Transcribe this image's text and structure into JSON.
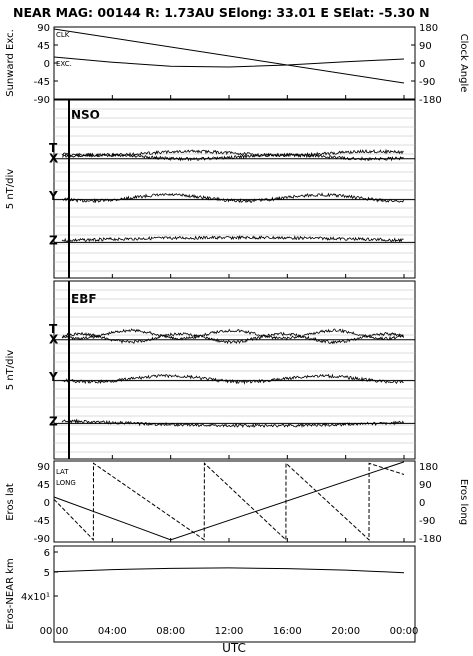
{
  "header": {
    "title": "NEAR MAG: 00144  R: 1.73AU  SElong:   33.01 E  SElat:   -5.30 N"
  },
  "colors": {
    "ink": "#000000",
    "grid": "#b0b0b0",
    "background": "#ffffff"
  },
  "chart_data": [
    {
      "type": "line",
      "id": "panel1",
      "ylabel_left": "Sunward Exc.",
      "ylabel_right": "Clock Angle",
      "left_ticks": [
        "90",
        "45",
        "0",
        "-45",
        "-90"
      ],
      "right_ticks": [
        "180",
        "90",
        "0",
        "-90",
        "-180"
      ],
      "ylim_left": [
        -90,
        90
      ],
      "ylim_right": [
        -180,
        180
      ],
      "legend": [
        "CLK",
        "EXC."
      ],
      "series": [
        {
          "name": "CLK",
          "x_hours": [
            0,
            24
          ],
          "values_right": [
            170,
            -100
          ]
        },
        {
          "name": "EXC.",
          "x_hours": [
            0,
            4,
            8,
            12,
            16,
            20,
            24
          ],
          "values_left": [
            15,
            2,
            -8,
            -10,
            -5,
            3,
            10
          ]
        }
      ]
    },
    {
      "type": "line",
      "id": "panel2",
      "frame": "NSO",
      "ylabel": "5 nT/div",
      "components": [
        "T",
        "X",
        "Y",
        "Z"
      ],
      "grid": true
    },
    {
      "type": "line",
      "id": "panel3",
      "frame": "EBF",
      "ylabel": "5 nT/div",
      "components": [
        "T",
        "X",
        "Y",
        "Z"
      ],
      "grid": true
    },
    {
      "type": "line",
      "id": "panel4",
      "ylabel_left": "Eros lat",
      "ylabel_right": "Eros long",
      "left_ticks": [
        "90",
        "45",
        "0",
        "-45",
        "-90"
      ],
      "right_ticks": [
        "180",
        "90",
        "0",
        "-90",
        "-180"
      ],
      "ylim_left": [
        -90,
        90
      ],
      "ylim_right": [
        -180,
        180
      ],
      "legend": [
        "LAT",
        "LONG"
      ],
      "series": [
        {
          "name": "LAT",
          "x_hours": [
            0,
            8,
            24
          ],
          "values_left": [
            10,
            -85,
            88
          ]
        },
        {
          "name": "LONG",
          "x_hours": [
            0,
            2.7,
            2.71,
            10.3,
            10.31,
            15.9,
            15.91,
            21.6,
            21.61,
            24
          ],
          "values_right": [
            10,
            -170,
            170,
            -170,
            170,
            -170,
            170,
            -170,
            170,
            120
          ]
        }
      ]
    },
    {
      "type": "line",
      "id": "panel5",
      "ylabel": "Eros-NEAR km",
      "ticks": [
        "6",
        "5",
        "4x10¹"
      ],
      "scale": "log",
      "ylim": [
        35,
        65
      ],
      "series": [
        {
          "name": "distance",
          "x_hours": [
            0,
            4,
            8,
            12,
            16,
            20,
            24
          ],
          "values": [
            50,
            51,
            51.6,
            51.8,
            51.5,
            50.8,
            49.6
          ]
        }
      ]
    }
  ],
  "time_axis": {
    "ticks": [
      "00:00",
      "04:00",
      "08:00",
      "12:00",
      "16:00",
      "20:00",
      "00:00"
    ],
    "label": "UTC"
  }
}
